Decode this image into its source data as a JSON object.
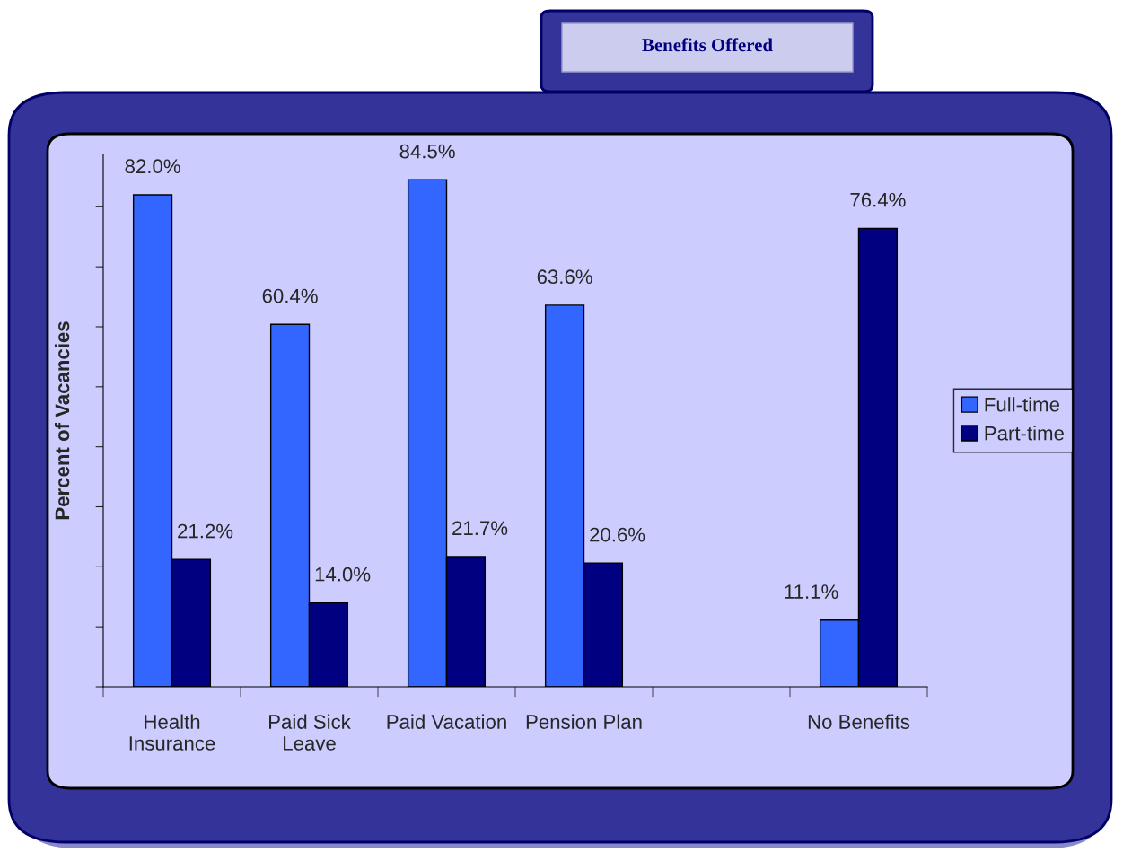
{
  "chart_data": {
    "type": "bar",
    "title": "Benefits Offered",
    "ylabel": "Percent of Vacancies",
    "categories": [
      "Health\nInsurance",
      "Paid Sick\nLeave",
      "Paid Vacation",
      "Pension Plan",
      null,
      "No Benefits"
    ],
    "series": [
      {
        "name": "Full-time",
        "color": "#3366ff",
        "values": [
          82.0,
          60.4,
          84.5,
          63.6,
          null,
          11.1
        ],
        "value_labels": [
          "82.0%",
          "60.4%",
          "84.5%",
          "63.6%",
          null,
          "11.1%"
        ]
      },
      {
        "name": "Part-time",
        "color": "#000080",
        "values": [
          21.2,
          14.0,
          21.7,
          20.6,
          null,
          76.4
        ],
        "value_labels": [
          "21.2%",
          "14.0%",
          "21.7%",
          "20.6%",
          null,
          "76.4%"
        ]
      }
    ],
    "grid": false,
    "legend": "right"
  }
}
